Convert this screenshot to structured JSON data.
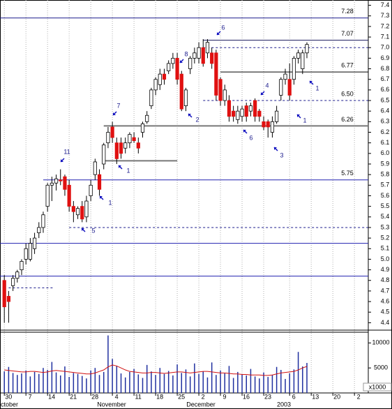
{
  "chart_data": {
    "type": "candlestick",
    "xlim": [
      -1,
      84.2
    ],
    "xticks": [
      {
        "value": 0,
        "label": "30"
      },
      {
        "value": 5,
        "label": "7"
      },
      {
        "value": 10,
        "label": "14"
      },
      {
        "value": 15,
        "label": "21"
      },
      {
        "value": 20,
        "label": "28"
      },
      {
        "value": 25,
        "label": "4"
      },
      {
        "value": 30,
        "label": "11"
      },
      {
        "value": 35,
        "label": "18"
      },
      {
        "value": 40,
        "label": "25"
      },
      {
        "value": 45,
        "label": "2"
      },
      {
        "value": 50,
        "label": "9"
      },
      {
        "value": 55,
        "label": "16"
      },
      {
        "value": 60,
        "label": "23"
      },
      {
        "value": 66,
        "label": "6"
      },
      {
        "value": 71,
        "label": "13"
      },
      {
        "value": 76,
        "label": "20"
      },
      {
        "value": 81,
        "label": "2"
      }
    ],
    "months": [
      "October",
      "November",
      "December",
      "2003"
    ],
    "ylim": [
      4.33,
      7.45
    ],
    "yticks": [
      4.4,
      4.5,
      4.6,
      4.7,
      4.8,
      4.9,
      {
        "value": 5,
        "label": "5.0"
      },
      5.1,
      5.2,
      5.3,
      5.4,
      5.5,
      5.6,
      5.7,
      5.8,
      5.9,
      {
        "value": 6,
        "label": "6.0"
      },
      6.1,
      6.2,
      6.3,
      6.4,
      6.5,
      6.6,
      6.7,
      6.8,
      6.9,
      {
        "value": 7,
        "label": "7.0"
      },
      7.1,
      7.2,
      7.3,
      7.4
    ],
    "up_color": "#ffffff",
    "down_color": "#e01010",
    "ohlc": [
      [
        4.8,
        4.85,
        4.4,
        4.55
      ],
      [
        4.65,
        4.7,
        4.4,
        4.6
      ],
      [
        4.75,
        4.85,
        4.7,
        4.82
      ],
      [
        4.82,
        4.9,
        4.78,
        4.88
      ],
      [
        4.9,
        5.0,
        4.85,
        4.98
      ],
      [
        5.0,
        5.15,
        4.95,
        5.1
      ],
      [
        5.0,
        5.2,
        4.98,
        5.15
      ],
      [
        5.1,
        5.25,
        5.05,
        5.2
      ],
      [
        5.25,
        5.35,
        5.2,
        5.3
      ],
      [
        5.3,
        5.45,
        5.25,
        5.42
      ],
      [
        5.5,
        5.72,
        5.45,
        5.7
      ],
      [
        5.7,
        5.78,
        5.55,
        5.72
      ],
      [
        5.72,
        5.8,
        5.65,
        5.76
      ],
      [
        5.75,
        5.85,
        5.7,
        5.74
      ],
      [
        5.78,
        5.8,
        5.6,
        5.66
      ],
      [
        5.7,
        5.75,
        5.45,
        5.5
      ],
      [
        5.5,
        5.55,
        5.35,
        5.45
      ],
      [
        5.42,
        5.5,
        5.38,
        5.48
      ],
      [
        5.5,
        5.55,
        5.35,
        5.38
      ],
      [
        5.4,
        5.6,
        5.35,
        5.55
      ],
      [
        5.6,
        5.75,
        5.55,
        5.7
      ],
      [
        5.8,
        5.95,
        5.75,
        5.92
      ],
      [
        5.8,
        5.85,
        5.6,
        5.66
      ],
      [
        5.9,
        6.1,
        5.85,
        6.08
      ],
      [
        6.1,
        6.25,
        6.05,
        6.2
      ],
      [
        6.25,
        6.3,
        6.1,
        6.15
      ],
      [
        6.1,
        6.15,
        5.9,
        5.95
      ],
      [
        6.1,
        6.15,
        5.95,
        6.0
      ],
      [
        6.05,
        6.15,
        6.0,
        6.1
      ],
      [
        6.1,
        6.2,
        6.05,
        6.18
      ],
      [
        6.15,
        6.2,
        6.1,
        6.12
      ],
      [
        6.1,
        6.15,
        6.0,
        6.05
      ],
      [
        6.2,
        6.3,
        6.15,
        6.28
      ],
      [
        6.3,
        6.4,
        6.28,
        6.36
      ],
      [
        6.45,
        6.62,
        6.42,
        6.6
      ],
      [
        6.6,
        6.72,
        6.55,
        6.7
      ],
      [
        6.65,
        6.8,
        6.6,
        6.75
      ],
      [
        6.75,
        6.8,
        6.65,
        6.7
      ],
      [
        6.78,
        6.88,
        6.75,
        6.85
      ],
      [
        6.85,
        6.95,
        6.8,
        6.9
      ],
      [
        6.9,
        6.95,
        6.65,
        6.7
      ],
      [
        6.75,
        6.78,
        6.4,
        6.42
      ],
      [
        6.45,
        6.62,
        6.4,
        6.6
      ],
      [
        6.8,
        6.92,
        6.75,
        6.9
      ],
      [
        6.9,
        7.0,
        6.85,
        6.95
      ],
      [
        6.9,
        7.05,
        6.85,
        7.0
      ],
      [
        7.0,
        7.08,
        6.82,
        6.85
      ],
      [
        6.95,
        7.08,
        6.9,
        7.05
      ],
      [
        6.95,
        7.0,
        6.8,
        6.85
      ],
      [
        6.95,
        6.98,
        6.5,
        6.55
      ],
      [
        6.7,
        6.72,
        6.45,
        6.5
      ],
      [
        6.5,
        6.65,
        6.45,
        6.6
      ],
      [
        6.5,
        6.55,
        6.3,
        6.35
      ],
      [
        6.4,
        6.45,
        6.3,
        6.35
      ],
      [
        6.32,
        6.45,
        6.28,
        6.4
      ],
      [
        6.35,
        6.45,
        6.3,
        6.42
      ],
      [
        6.45,
        6.48,
        6.3,
        6.35
      ],
      [
        6.4,
        6.48,
        6.35,
        6.45
      ],
      [
        6.5,
        6.52,
        6.3,
        6.35
      ],
      [
        6.4,
        6.42,
        6.3,
        6.35
      ],
      [
        6.3,
        6.35,
        6.22,
        6.25
      ],
      [
        6.3,
        6.32,
        6.15,
        6.25
      ],
      [
        6.2,
        6.35,
        6.15,
        6.3
      ],
      [
        6.3,
        6.45,
        6.28,
        6.4
      ],
      [
        6.55,
        6.72,
        6.5,
        6.7
      ],
      [
        6.7,
        6.8,
        6.65,
        6.75
      ],
      [
        6.7,
        6.85,
        6.5,
        6.55
      ],
      [
        6.7,
        6.92,
        6.65,
        6.9
      ],
      [
        6.9,
        6.98,
        6.85,
        6.95
      ],
      [
        6.8,
        6.98,
        6.75,
        6.95
      ],
      [
        6.95,
        7.05,
        6.9,
        7.03
      ]
    ],
    "levels": [
      7.28,
      7.07,
      6.77,
      {
        "value": 6.5,
        "label": "6.50"
      },
      6.26,
      5.75
    ],
    "lines": [
      7.0,
      5.93,
      5.3,
      5.15,
      4.84,
      4.73
    ],
    "annotations": [
      "6",
      "8",
      "7",
      "11",
      "4",
      "1",
      "1",
      "6",
      "3",
      "1",
      "1",
      "5",
      "2"
    ],
    "volume": {
      "color": "#1f2f9f",
      "ylim": [
        0,
        12000
      ],
      "yticks": [
        5000,
        10000
      ],
      "unit": "x1000",
      "values": [
        4300,
        5200,
        4000,
        3600,
        3900,
        4500,
        3300,
        4200,
        3800,
        5000,
        4600,
        6200,
        4100,
        3500,
        5300,
        3200,
        4000,
        3800,
        3400,
        2900,
        4500,
        5000,
        3600,
        4200,
        11500,
        6800,
        5400,
        3900,
        3100,
        4200,
        4800,
        3700,
        3000,
        5600,
        4300,
        3600,
        5000,
        3800,
        4400,
        3500,
        5700,
        4000,
        4700,
        3300,
        5900,
        3800,
        4300,
        3100,
        6100,
        3600,
        4500,
        3900,
        5400,
        3000,
        4200,
        3700,
        3500,
        4800,
        3300,
        2900,
        4100,
        3200,
        3600,
        5200,
        4600,
        2800,
        3900,
        4700,
        8200,
        5300,
        6000
      ],
      "average_color": "#d01010",
      "average": [
        4600,
        4500,
        4400,
        4300,
        4200,
        4200,
        4300,
        4300,
        4200,
        4100,
        4200,
        4400,
        4500,
        4400,
        4300,
        4200,
        4100,
        4000,
        3900,
        3800,
        3800,
        4000,
        4300,
        4600,
        5200,
        5600,
        5400,
        5000,
        4600,
        4300,
        4200,
        4100,
        4000,
        4000,
        4100,
        4100,
        4000,
        3900,
        4000,
        4100,
        4200,
        4200,
        4100,
        4000,
        4100,
        4200,
        4300,
        4300,
        4200,
        4100,
        4000,
        4000,
        3900,
        3800,
        3800,
        3700,
        3700,
        3600,
        3600,
        3600,
        3500,
        3500,
        3600,
        3800,
        4000,
        4100,
        4200,
        4300,
        4600,
        5000,
        5300
      ]
    }
  }
}
